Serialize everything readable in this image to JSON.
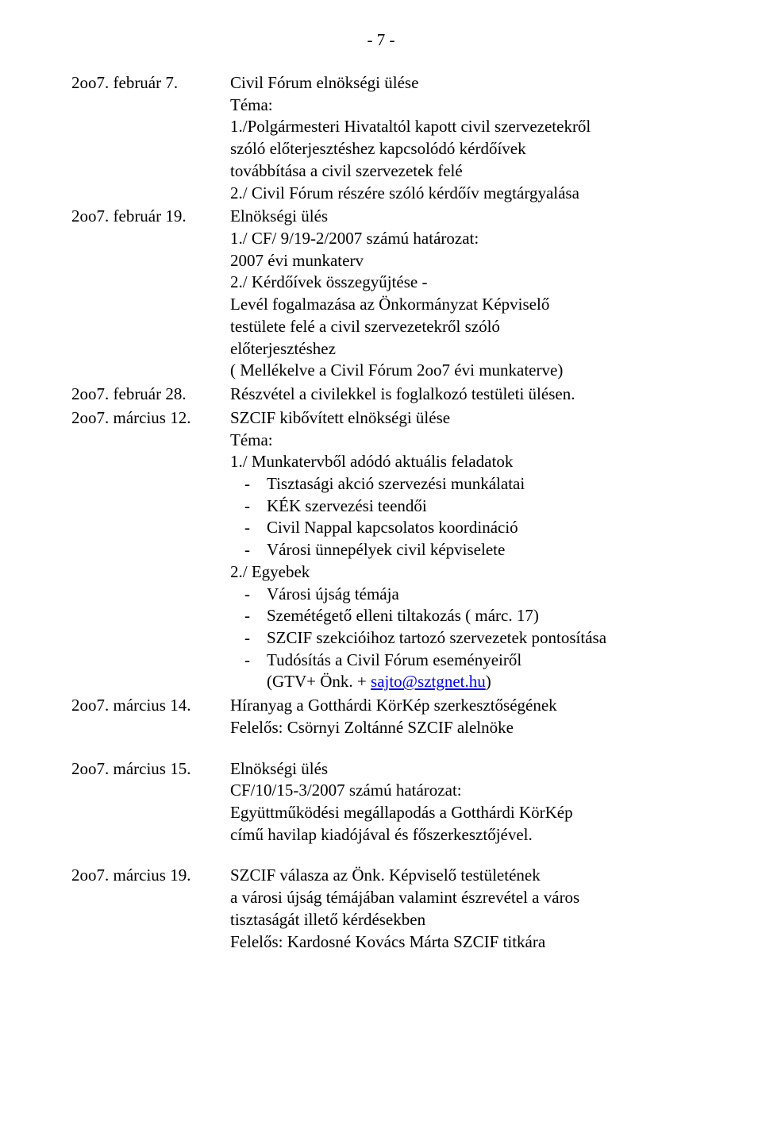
{
  "page_number": "- 7 -",
  "entries": [
    {
      "date": "2oo7. február 7.",
      "lines": [
        "Civil Fórum elnökségi ülése",
        "Téma:",
        "1./Polgármesteri Hivataltól kapott  civil szervezetekről",
        "szóló előterjesztéshez kapcsolódó kérdőívek",
        "továbbítása a civil szervezetek felé",
        "2./ Civil Fórum részére szóló kérdőív megtárgyalása"
      ]
    },
    {
      "date": "2oo7. február 19.",
      "lines": [
        "Elnökségi ülés",
        "1./ CF/ 9/19-2/2007 számú határozat:",
        "2007 évi munkaterv",
        "2./ Kérdőívek összegyűjtése -",
        "Levél fogalmazása az Önkormányzat Képviselő",
        "testülete felé a civil szervezetekről szóló",
        "előterjesztéshez",
        "( Mellékelve a Civil Fórum 2oo7 évi munkaterve)"
      ]
    },
    {
      "date": "2oo7. február 28.",
      "lines": [
        "Részvétel a civilekkel is foglalkozó testületi ülésen."
      ]
    },
    {
      "date": "2oo7. március 12.",
      "lines": [
        "SZCIF kibővített elnökségi ülése",
        "Téma:",
        "1./ Munkatervből adódó aktuális feladatok"
      ],
      "bullets1": [
        "Tisztasági akció szervezési munkálatai",
        "KÉK  szervezési teendői",
        "Civil Nappal kapcsolatos koordináció",
        "Városi ünnepélyek civil képviselete"
      ],
      "line_mid": "2./ Egyebek",
      "bullets2": [
        "Városi újság témája",
        "Szemétégető elleni tiltakozás ( márc. 17)",
        "SZCIF szekcióihoz tartozó szervezetek pontosítása",
        "Tudósítás a Civil Fórum eseményeiről"
      ],
      "paren_prefix": "(GTV+ Önk. + ",
      "mail": "sajto@sztgnet.hu",
      "paren_suffix": ")"
    },
    {
      "date": "2oo7. március 14.",
      "lines": [
        "Híranyag a Gotthárdi KörKép szerkesztőségének",
        "Felelős: Csörnyi Zoltánné SZCIF alelnöke"
      ]
    },
    {
      "date": "2oo7. március 15.",
      "lines": [
        "Elnökségi ülés",
        "CF/10/15-3/2007 számú határozat:",
        "Együttműködési megállapodás a Gotthárdi KörKép",
        "című havilap kiadójával és főszerkesztőjével."
      ]
    },
    {
      "date": "2oo7. március 19.",
      "lines": [
        "SZCIF válasza az Önk. Képviselő testületének",
        "a városi újság témájában valamint észrevétel a város",
        "tisztaságát illető kérdésekben",
        "Felelős: Kardosné Kovács Márta SZCIF titkára"
      ]
    }
  ]
}
